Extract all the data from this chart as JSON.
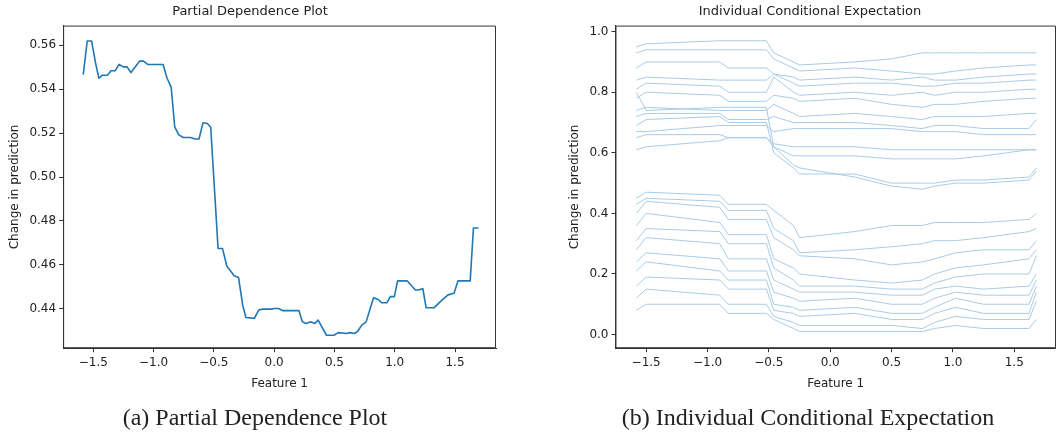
{
  "chart_data": [
    {
      "type": "line",
      "title": "Partial Dependence Plot",
      "xlabel": "Feature 1",
      "ylabel": "Change in prediction",
      "annotations": [
        "(a) Partial Dependence Plot"
      ],
      "x": [
        -1.583,
        -1.55,
        -1.514,
        -1.48,
        -1.453,
        -1.425,
        -1.383,
        -1.352,
        -1.319,
        -1.286,
        -1.25,
        -1.22,
        -1.188,
        -1.116,
        -1.083,
        -1.049,
        -0.921,
        -0.888,
        -0.854,
        -0.824,
        -0.79,
        -0.754,
        -0.693,
        -0.657,
        -0.623,
        -0.59,
        -0.554,
        -0.526,
        -0.493,
        -0.465,
        -0.428,
        -0.392,
        -0.331,
        -0.295,
        -0.261,
        -0.234,
        -0.164,
        -0.128,
        -0.094,
        -0.025,
        0.003,
        0.036,
        0.073,
        0.206,
        0.234,
        0.267,
        0.303,
        0.337,
        0.365,
        0.434,
        0.496,
        0.532,
        0.601,
        0.629,
        0.665,
        0.693,
        0.727,
        0.763,
        0.824,
        0.86,
        0.894,
        0.935,
        0.963,
        0.997,
        1.024,
        1.102,
        1.172,
        1.2,
        1.233,
        1.261,
        1.325,
        1.394,
        1.442,
        1.492,
        1.525,
        1.626,
        1.653,
        1.695
      ],
      "series": [
        {
          "color": "#1f77b4",
          "values": [
            0.5467,
            0.562,
            0.562,
            0.5517,
            0.545,
            0.5464,
            0.5464,
            0.5484,
            0.5484,
            0.5513,
            0.5502,
            0.5502,
            0.5476,
            0.5528,
            0.5528,
            0.5513,
            0.5513,
            0.545,
            0.541,
            0.5227,
            0.5192,
            0.518,
            0.518,
            0.5173,
            0.5173,
            0.5247,
            0.5244,
            0.5227,
            0.4929,
            0.4674,
            0.4674,
            0.4593,
            0.455,
            0.4542,
            0.4417,
            0.436,
            0.4356,
            0.4394,
            0.4398,
            0.4398,
            0.4401,
            0.4401,
            0.4391,
            0.4391,
            0.434,
            0.4333,
            0.434,
            0.4333,
            0.4348,
            0.4279,
            0.4279,
            0.4291,
            0.4287,
            0.4291,
            0.4287,
            0.4297,
            0.4325,
            0.434,
            0.445,
            0.4443,
            0.4427,
            0.4427,
            0.4455,
            0.4455,
            0.4527,
            0.4527,
            0.4485,
            0.4485,
            0.4492,
            0.4404,
            0.4404,
            0.444,
            0.4463,
            0.447,
            0.4527,
            0.4527,
            0.4768,
            0.4768
          ]
        }
      ],
      "xlim": [
        -1.75,
        1.84
      ],
      "ylim": [
        0.422,
        0.569
      ],
      "xticks": [
        {
          "value": -1.5,
          "label": "−1.5"
        },
        {
          "value": -1,
          "label": "−1.0"
        },
        {
          "value": -0.5,
          "label": "−0.5"
        },
        {
          "value": 0,
          "label": "0.0"
        },
        {
          "value": 0.5,
          "label": "0.5"
        },
        {
          "value": 1,
          "label": "1.0"
        },
        {
          "value": 1.5,
          "label": "1.5"
        }
      ],
      "yticks": [
        0.44,
        0.46,
        0.48,
        {
          "value": 0.5,
          "label": "0.50"
        },
        0.52,
        0.54,
        0.56
      ],
      "grid": false,
      "legend": false
    },
    {
      "type": "line",
      "title": "Individual Conditional Expectation",
      "xlabel": "Feature 1",
      "ylabel": "Change in prediction",
      "annotations": [
        "(b) Individual Conditional Expectation"
      ],
      "x": [
        -1.58,
        -1.5,
        -0.9,
        -0.83,
        -0.52,
        -0.46,
        -0.3,
        -0.25,
        0.2,
        0.5,
        0.75,
        0.85,
        1.02,
        1.25,
        1.62,
        1.68
      ],
      "series": [
        {
          "color": "#a9cbe6",
          "values": [
            0.95,
            0.96,
            0.97,
            0.97,
            0.97,
            0.93,
            0.9,
            0.89,
            0.9,
            0.91,
            0.93,
            0.93,
            0.93,
            0.93,
            0.93,
            0.93
          ]
        },
        {
          "color": "#a9cbe6",
          "values": [
            0.93,
            0.94,
            0.94,
            0.94,
            0.94,
            0.91,
            0.88,
            0.87,
            0.88,
            0.87,
            0.86,
            0.86,
            0.87,
            0.88,
            0.89,
            0.89
          ]
        },
        {
          "color": "#a9cbe6",
          "values": [
            0.88,
            0.9,
            0.9,
            0.88,
            0.88,
            0.86,
            0.85,
            0.84,
            0.85,
            0.84,
            0.85,
            0.84,
            0.84,
            0.85,
            0.86,
            0.86
          ]
        },
        {
          "color": "#a9cbe6",
          "values": [
            0.84,
            0.85,
            0.84,
            0.84,
            0.84,
            0.86,
            0.83,
            0.82,
            0.83,
            0.83,
            0.82,
            0.82,
            0.83,
            0.83,
            0.84,
            0.84
          ]
        },
        {
          "color": "#a9cbe6",
          "values": [
            0.81,
            0.83,
            0.82,
            0.8,
            0.8,
            0.85,
            0.8,
            0.79,
            0.8,
            0.79,
            0.8,
            0.79,
            0.8,
            0.8,
            0.81,
            0.81
          ]
        },
        {
          "color": "#a9cbe6",
          "values": [
            0.78,
            0.8,
            0.79,
            0.77,
            0.77,
            0.79,
            0.78,
            0.77,
            0.78,
            0.76,
            0.75,
            0.76,
            0.76,
            0.77,
            0.78,
            0.78
          ]
        },
        {
          "color": "#a9cbe6",
          "values": [
            0.74,
            0.75,
            0.74,
            0.74,
            0.74,
            0.76,
            0.73,
            0.72,
            0.73,
            0.72,
            0.71,
            0.72,
            0.72,
            0.72,
            0.73,
            0.73
          ]
        },
        {
          "color": "#a9cbe6",
          "values": [
            0.72,
            0.73,
            0.73,
            0.71,
            0.71,
            0.72,
            0.7,
            0.7,
            0.7,
            0.69,
            0.68,
            0.69,
            0.69,
            0.68,
            0.68,
            0.71
          ]
        },
        {
          "color": "#a9cbe6",
          "values": [
            0.67,
            0.67,
            0.69,
            0.69,
            0.69,
            0.67,
            0.68,
            0.68,
            0.68,
            0.68,
            0.67,
            0.67,
            0.67,
            0.66,
            0.66,
            0.66
          ]
        },
        {
          "color": "#a9cbe6",
          "values": [
            0.65,
            0.66,
            0.66,
            0.65,
            0.65,
            0.63,
            0.62,
            0.62,
            0.62,
            0.61,
            0.61,
            0.61,
            0.61,
            0.61,
            0.61,
            0.61
          ]
        },
        {
          "color": "#a9cbe6",
          "values": [
            0.61,
            0.62,
            0.64,
            0.65,
            0.65,
            0.62,
            0.59,
            0.59,
            0.59,
            0.58,
            0.58,
            0.58,
            0.58,
            0.59,
            0.61,
            0.61
          ]
        },
        {
          "color": "#a9cbe6",
          "values": [
            0.69,
            0.71,
            0.72,
            0.7,
            0.7,
            0.6,
            0.55,
            0.53,
            0.53,
            0.5,
            0.5,
            0.5,
            0.51,
            0.51,
            0.52,
            0.55
          ]
        },
        {
          "color": "#a9cbe6",
          "values": [
            0.8,
            0.74,
            0.75,
            0.75,
            0.75,
            0.62,
            0.56,
            0.55,
            0.52,
            0.49,
            0.48,
            0.49,
            0.5,
            0.5,
            0.51,
            0.54
          ]
        },
        {
          "color": "#a9cbe6",
          "values": [
            0.45,
            0.47,
            0.46,
            0.43,
            0.43,
            0.41,
            0.36,
            0.32,
            0.34,
            0.36,
            0.36,
            0.37,
            0.37,
            0.37,
            0.38,
            0.4
          ]
        },
        {
          "color": "#a9cbe6",
          "values": [
            0.43,
            0.45,
            0.44,
            0.41,
            0.41,
            0.35,
            0.31,
            0.27,
            0.28,
            0.29,
            0.3,
            0.31,
            0.31,
            0.32,
            0.34,
            0.35
          ]
        },
        {
          "color": "#a9cbe6",
          "values": [
            0.4,
            0.44,
            0.42,
            0.38,
            0.38,
            0.32,
            0.28,
            0.26,
            0.25,
            0.23,
            0.24,
            0.25,
            0.27,
            0.28,
            0.28,
            0.31
          ]
        },
        {
          "color": "#a9cbe6",
          "values": [
            0.36,
            0.4,
            0.37,
            0.33,
            0.33,
            0.25,
            0.22,
            0.2,
            0.18,
            0.17,
            0.18,
            0.2,
            0.22,
            0.23,
            0.25,
            0.28
          ]
        },
        {
          "color": "#a9cbe6",
          "values": [
            0.31,
            0.35,
            0.34,
            0.3,
            0.3,
            0.22,
            0.18,
            0.16,
            0.16,
            0.15,
            0.15,
            0.17,
            0.19,
            0.2,
            0.2,
            0.26
          ]
        },
        {
          "color": "#a9cbe6",
          "values": [
            0.28,
            0.32,
            0.3,
            0.25,
            0.25,
            0.18,
            0.15,
            0.14,
            0.14,
            0.13,
            0.13,
            0.15,
            0.16,
            0.15,
            0.16,
            0.2
          ]
        },
        {
          "color": "#a9cbe6",
          "values": [
            0.24,
            0.27,
            0.25,
            0.21,
            0.21,
            0.14,
            0.12,
            0.11,
            0.12,
            0.1,
            0.1,
            0.12,
            0.14,
            0.13,
            0.13,
            0.18
          ]
        },
        {
          "color": "#a9cbe6",
          "values": [
            0.21,
            0.24,
            0.21,
            0.18,
            0.18,
            0.1,
            0.09,
            0.08,
            0.09,
            0.07,
            0.07,
            0.09,
            0.12,
            0.1,
            0.1,
            0.16
          ]
        },
        {
          "color": "#a9cbe6",
          "values": [
            0.16,
            0.19,
            0.18,
            0.15,
            0.15,
            0.08,
            0.07,
            0.06,
            0.07,
            0.05,
            0.05,
            0.07,
            0.09,
            0.07,
            0.07,
            0.14
          ]
        },
        {
          "color": "#a9cbe6",
          "values": [
            0.12,
            0.15,
            0.13,
            0.1,
            0.1,
            0.06,
            0.04,
            0.03,
            0.03,
            0.03,
            0.02,
            0.04,
            0.06,
            0.05,
            0.05,
            0.11
          ]
        },
        {
          "color": "#a9cbe6",
          "values": [
            0.08,
            0.1,
            0.1,
            0.07,
            0.07,
            0.05,
            0.02,
            0.01,
            0.01,
            0.01,
            0.01,
            0.02,
            0.03,
            0.02,
            0.02,
            0.05
          ]
        }
      ],
      "xlim": [
        -1.75,
        1.84
      ],
      "ylim": [
        -0.045,
        1.02
      ],
      "xticks": [
        {
          "value": -1.5,
          "label": "−1.5"
        },
        {
          "value": -1,
          "label": "−1.0"
        },
        {
          "value": -0.5,
          "label": "−0.5"
        },
        {
          "value": 0,
          "label": "0.0"
        },
        {
          "value": 0.5,
          "label": "0.5"
        },
        {
          "value": 1,
          "label": "1.0"
        },
        {
          "value": 1.5,
          "label": "1.5"
        }
      ],
      "yticks": [
        {
          "value": 0,
          "label": "0.0"
        },
        {
          "value": 0.2,
          "label": "0.2"
        },
        {
          "value": 0.4,
          "label": "0.4"
        },
        {
          "value": 0.6,
          "label": "0.6"
        },
        {
          "value": 0.8,
          "label": "0.8"
        },
        {
          "value": 1,
          "label": "1.0"
        }
      ],
      "grid": false,
      "legend": false
    }
  ]
}
